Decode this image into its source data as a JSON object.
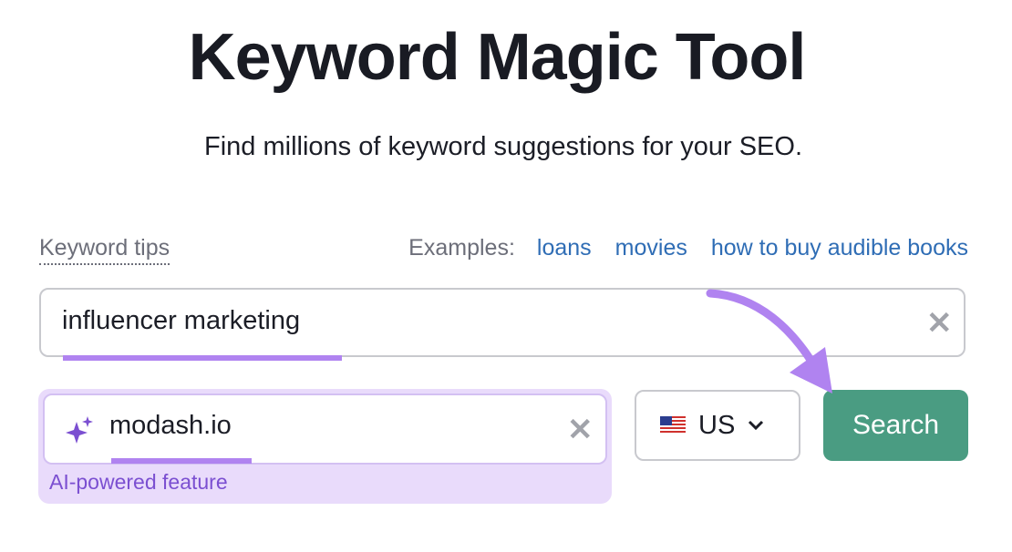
{
  "header": {
    "title": "Keyword Magic Tool",
    "subtitle": "Find millions of keyword suggestions for your SEO."
  },
  "tips": {
    "label": "Keyword tips"
  },
  "examples": {
    "label": "Examples:",
    "links": [
      "loans",
      "movies",
      "how to buy audible books"
    ]
  },
  "keyword_input": {
    "value": "influencer marketing",
    "clear_icon": "close-icon"
  },
  "domain_input": {
    "value": "modash.io",
    "icon": "sparkles-icon",
    "clear_icon": "close-icon",
    "note": "AI-powered feature"
  },
  "country_select": {
    "selected": "US",
    "flag": "us-flag-icon"
  },
  "search_button": {
    "label": "Search",
    "color": "#4a9c82"
  },
  "colors": {
    "highlight": "#b083f0",
    "ai_bg": "#e9dbfb"
  }
}
